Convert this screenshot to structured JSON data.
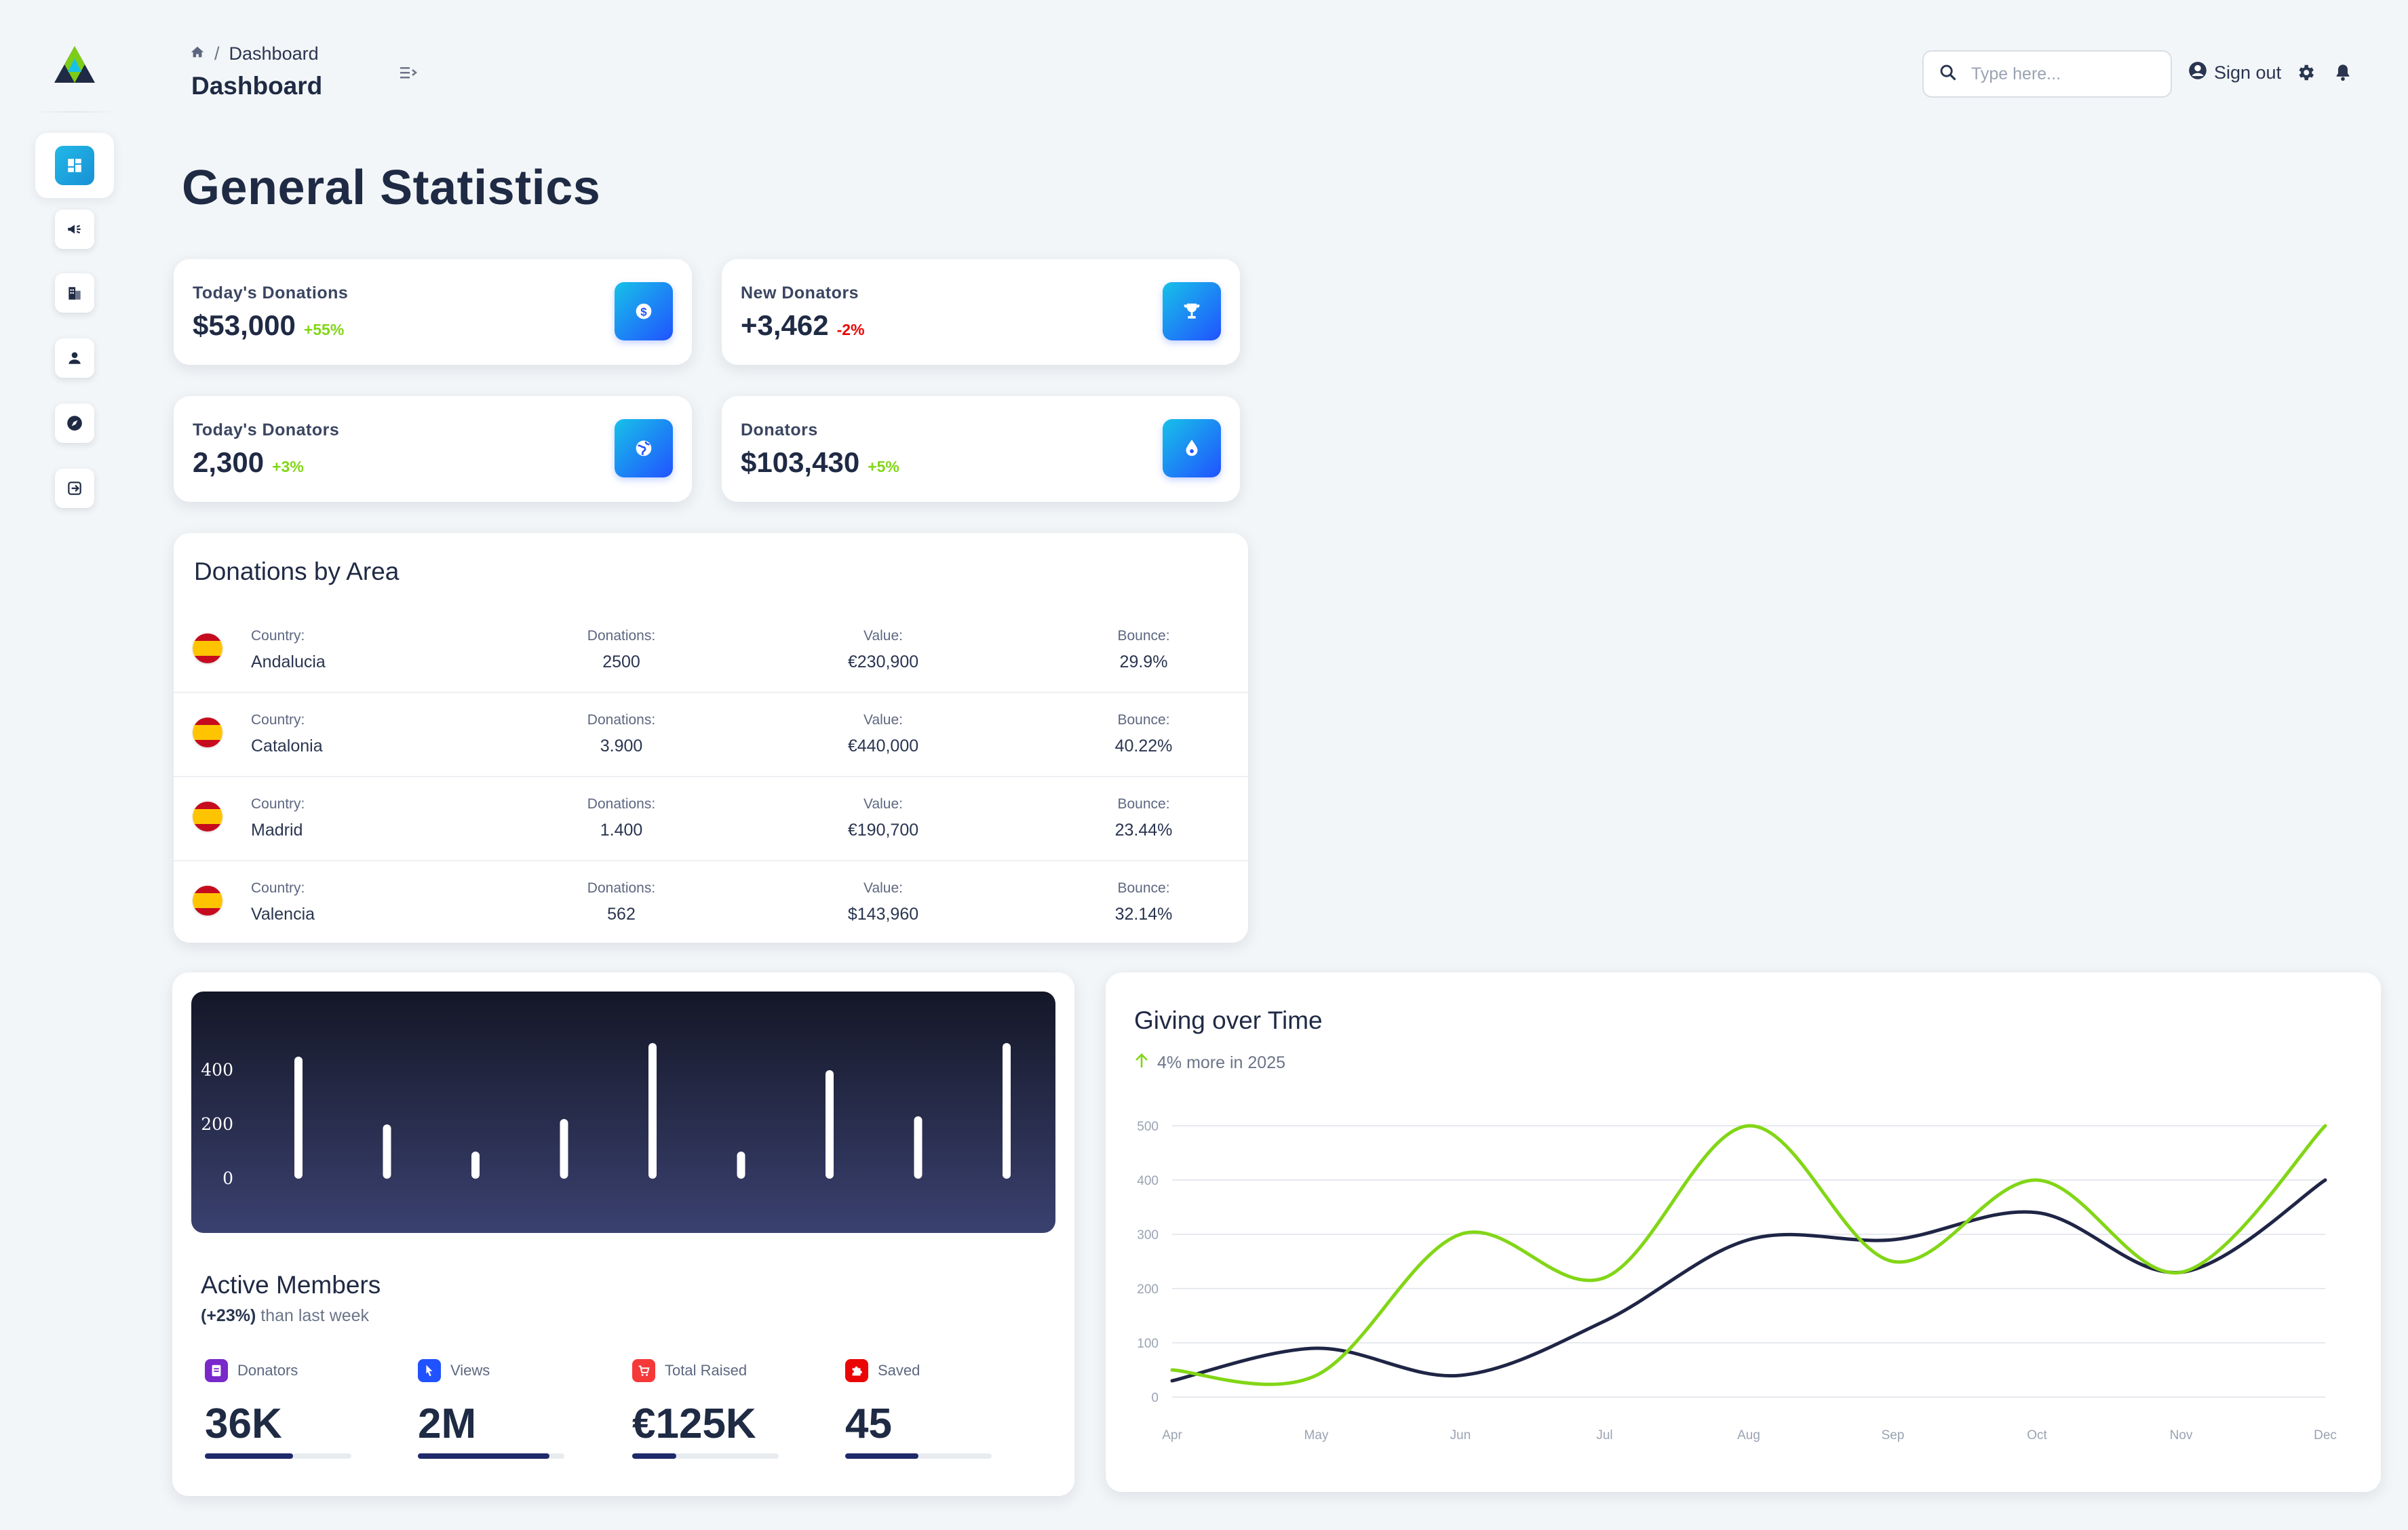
{
  "header": {
    "breadcrumb": {
      "home_icon": "home-icon",
      "current": "Dashboard"
    },
    "page_title": "Dashboard",
    "search_placeholder": "Type here...",
    "sign_out_label": "Sign out",
    "icons": [
      "menu-icon",
      "search-icon",
      "user-circle-icon",
      "gear-icon",
      "bell-icon"
    ]
  },
  "sidebar": {
    "items": [
      {
        "icon": "dashboard-icon",
        "active": true
      },
      {
        "icon": "megaphone-icon",
        "active": false
      },
      {
        "icon": "building-icon",
        "active": false
      },
      {
        "icon": "user-icon",
        "active": false
      },
      {
        "icon": "compass-icon",
        "active": false
      },
      {
        "icon": "sign-in-icon",
        "active": false
      }
    ]
  },
  "main_title": "General Statistics",
  "stats": [
    {
      "label": "Today's Donations",
      "value": "$53,000",
      "change": "+55%",
      "trend": "up",
      "icon": "dollar-icon"
    },
    {
      "label": "New Donators",
      "value": "+3,462",
      "change": "-2%",
      "trend": "down",
      "icon": "trophy-icon"
    },
    {
      "label": "Today's Donators",
      "value": "2,300",
      "change": "+3%",
      "trend": "up",
      "icon": "globe-icon"
    },
    {
      "label": "Donators",
      "value": "$103,430",
      "change": "+5%",
      "trend": "up",
      "icon": "drop-icon"
    }
  ],
  "donations_table": {
    "title": "Donations by Area",
    "headers": {
      "country": "Country:",
      "donations": "Donations:",
      "value": "Value:",
      "bounce": "Bounce:"
    },
    "rows": [
      {
        "country": "Andalucia",
        "donations": "2500",
        "value": "€230,900",
        "bounce": "29.9%"
      },
      {
        "country": "Catalonia",
        "donations": "3.900",
        "value": "€440,000",
        "bounce": "40.22%"
      },
      {
        "country": "Madrid",
        "donations": "1.400",
        "value": "€190,700",
        "bounce": "23.44%"
      },
      {
        "country": "Valencia",
        "donations": "562",
        "value": "$143,960",
        "bounce": "32.14%"
      }
    ]
  },
  "active_members": {
    "title": "Active Members",
    "subtitle_bold": "(+23%)",
    "subtitle_rest": " than last week",
    "metrics": [
      {
        "label": "Donators",
        "value": "36K",
        "progress": 0.6,
        "color": "#7928ca",
        "icon": "document-icon"
      },
      {
        "label": "Views",
        "value": "2M",
        "progress": 0.9,
        "color": "#2152ff",
        "icon": "cursor-icon"
      },
      {
        "label": "Total Raised",
        "value": "€125K",
        "progress": 0.3,
        "color": "#f53939",
        "icon": "cart-icon"
      },
      {
        "label": "Saved",
        "value": "45",
        "progress": 0.5,
        "color": "#ea0606",
        "icon": "puzzle-icon"
      }
    ]
  },
  "giving_over_time": {
    "title": "Giving over Time",
    "subtitle": "4% more in 2025",
    "arrow_icon": "arrow-up-icon"
  },
  "chart_data": [
    {
      "type": "bar",
      "title": "",
      "categories": [
        "",
        "",
        "",
        "",
        "",
        "",
        "",
        "",
        ""
      ],
      "values": [
        450,
        200,
        100,
        220,
        500,
        100,
        400,
        230,
        500
      ],
      "yticks": [
        0,
        200,
        400
      ],
      "ylim": [
        0,
        500
      ],
      "grid": false,
      "color": "#ffffff"
    },
    {
      "type": "line",
      "title": "Giving over Time",
      "categories": [
        "Apr",
        "May",
        "Jun",
        "Jul",
        "Aug",
        "Sep",
        "Oct",
        "Nov",
        "Dec"
      ],
      "series": [
        {
          "values": [
            50,
            40,
            300,
            220,
            500,
            250,
            400,
            230,
            500
          ],
          "color": "#82d616"
        },
        {
          "values": [
            30,
            90,
            40,
            140,
            290,
            290,
            340,
            230,
            400
          ],
          "color": "#1f2545"
        }
      ],
      "yticks": [
        0,
        100,
        200,
        300,
        400,
        500
      ],
      "ylim": [
        0,
        500
      ],
      "grid": true
    }
  ]
}
